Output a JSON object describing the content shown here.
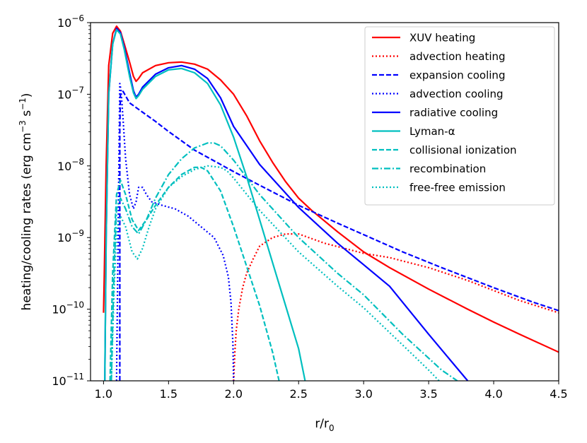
{
  "chart_data": {
    "type": "line",
    "title": "",
    "xlabel": "r/r",
    "xlabel_sub": "0",
    "ylabel_parts": {
      "pre": "heating/cooling rates (erg cm",
      "exp1": "−3",
      "mid": " s",
      "exp2": "−1",
      "post": ")"
    },
    "xlim": [
      0.9,
      4.5
    ],
    "ylim_log10": [
      -11,
      -6
    ],
    "yscale": "log",
    "grid": false,
    "legend_placement": "top-right",
    "x_ticks": [
      {
        "value": 1.0,
        "label": "1.0"
      },
      {
        "value": 1.5,
        "label": "1.5"
      },
      {
        "value": 2.0,
        "label": "2.0"
      },
      {
        "value": 2.5,
        "label": "2.5"
      },
      {
        "value": 3.0,
        "label": "3.0"
      },
      {
        "value": 3.5,
        "label": "3.5"
      },
      {
        "value": 4.0,
        "label": "4.0"
      },
      {
        "value": 4.5,
        "label": "4.5"
      }
    ],
    "y_ticks": [
      {
        "exp": -11,
        "base": "10",
        "sup": "−11"
      },
      {
        "exp": -10,
        "base": "10",
        "sup": "−10"
      },
      {
        "exp": -9,
        "base": "10",
        "sup": "−9"
      },
      {
        "exp": -8,
        "base": "10",
        "sup": "−8"
      },
      {
        "exp": -7,
        "base": "10",
        "sup": "−7"
      },
      {
        "exp": -6,
        "base": "10",
        "sup": "−6"
      }
    ],
    "series": [
      {
        "name": "XUV heating",
        "color": "#ff0000",
        "dash": "solid",
        "x": [
          1.0,
          1.005,
          1.02,
          1.04,
          1.07,
          1.1,
          1.13,
          1.16,
          1.2,
          1.23,
          1.25,
          1.27,
          1.3,
          1.4,
          1.5,
          1.6,
          1.7,
          1.8,
          1.9,
          2.0,
          2.1,
          2.2,
          2.3,
          2.4,
          2.5,
          2.6,
          2.8,
          3.0,
          3.2,
          3.5,
          3.8,
          4.0,
          4.2,
          4.5
        ],
        "y": [
          -10.05,
          -9.6,
          -8.0,
          -6.6,
          -6.15,
          -6.05,
          -6.12,
          -6.3,
          -6.55,
          -6.75,
          -6.82,
          -6.78,
          -6.7,
          -6.6,
          -6.56,
          -6.55,
          -6.58,
          -6.65,
          -6.8,
          -7.0,
          -7.3,
          -7.65,
          -7.95,
          -8.22,
          -8.45,
          -8.62,
          -8.92,
          -9.2,
          -9.42,
          -9.72,
          -10.0,
          -10.18,
          -10.35,
          -10.6
        ]
      },
      {
        "name": "advection heating",
        "color": "#ff0000",
        "dash": "dotted",
        "x": [
          2.0,
          2.01,
          2.02,
          2.04,
          2.07,
          2.1,
          2.15,
          2.2,
          2.3,
          2.4,
          2.5,
          2.7,
          3.0,
          3.2,
          3.5,
          3.8,
          4.0,
          4.2,
          4.5
        ],
        "y": [
          -11.0,
          -10.6,
          -10.3,
          -10.0,
          -9.7,
          -9.5,
          -9.3,
          -9.12,
          -9.0,
          -8.95,
          -8.95,
          -9.08,
          -9.22,
          -9.28,
          -9.42,
          -9.6,
          -9.74,
          -9.88,
          -10.05
        ]
      },
      {
        "name": "expansion cooling",
        "color": "#0000ff",
        "dash": "dashed",
        "x": [
          1.125,
          1.125,
          1.13,
          1.15,
          1.2,
          1.3,
          1.4,
          1.5,
          1.6,
          1.7,
          1.8,
          2.0,
          2.2,
          2.5,
          2.8,
          3.0,
          3.3,
          3.6,
          4.0,
          4.3,
          4.5
        ],
        "y": [
          -11.0,
          -7.5,
          -7.0,
          -6.96,
          -7.12,
          -7.25,
          -7.38,
          -7.52,
          -7.65,
          -7.78,
          -7.88,
          -8.08,
          -8.27,
          -8.55,
          -8.8,
          -8.96,
          -9.2,
          -9.42,
          -9.7,
          -9.9,
          -10.02
        ]
      },
      {
        "name": "advection cooling",
        "color": "#0000ff",
        "dash": "dotted",
        "x": [
          1.1,
          1.115,
          1.125,
          1.135,
          1.15,
          1.17,
          1.2,
          1.23,
          1.25,
          1.27,
          1.3,
          1.33,
          1.37,
          1.45,
          1.55,
          1.65,
          1.75,
          1.85,
          1.92,
          1.96,
          1.98,
          1.995,
          2.0
        ],
        "y": [
          -11.0,
          -8.5,
          -6.85,
          -6.95,
          -7.35,
          -7.9,
          -8.4,
          -8.6,
          -8.5,
          -8.3,
          -8.3,
          -8.4,
          -8.5,
          -8.55,
          -8.6,
          -8.7,
          -8.85,
          -9.0,
          -9.25,
          -9.55,
          -9.9,
          -10.5,
          -11.0
        ]
      },
      {
        "name": "radiative cooling",
        "color": "#0000ff",
        "dash": "solid",
        "x": [
          1.01,
          1.02,
          1.04,
          1.07,
          1.1,
          1.13,
          1.16,
          1.2,
          1.23,
          1.25,
          1.27,
          1.3,
          1.4,
          1.5,
          1.6,
          1.7,
          1.8,
          1.9,
          2.0,
          2.2,
          2.5,
          2.8,
          3.0,
          3.2,
          3.5,
          3.8
        ],
        "y": [
          -11.0,
          -9.0,
          -7.0,
          -6.3,
          -6.08,
          -6.14,
          -6.35,
          -6.7,
          -6.95,
          -7.04,
          -7.0,
          -6.9,
          -6.72,
          -6.63,
          -6.6,
          -6.65,
          -6.78,
          -7.05,
          -7.45,
          -7.98,
          -8.58,
          -9.08,
          -9.38,
          -9.68,
          -10.35,
          -11.0
        ]
      },
      {
        "name": "Lyman-α",
        "color": "#00bfbf",
        "dash": "solid",
        "x": [
          1.01,
          1.02,
          1.04,
          1.07,
          1.1,
          1.13,
          1.16,
          1.2,
          1.23,
          1.25,
          1.27,
          1.3,
          1.4,
          1.5,
          1.6,
          1.7,
          1.8,
          1.9,
          2.0,
          2.1,
          2.2,
          2.3,
          2.4,
          2.5,
          2.55
        ],
        "y": [
          -11.0,
          -9.0,
          -7.0,
          -6.3,
          -6.1,
          -6.16,
          -6.38,
          -6.75,
          -6.98,
          -7.06,
          -7.02,
          -6.93,
          -6.75,
          -6.66,
          -6.64,
          -6.7,
          -6.85,
          -7.15,
          -7.6,
          -8.15,
          -8.75,
          -9.35,
          -9.95,
          -10.55,
          -11.0
        ]
      },
      {
        "name": "collisional ionization",
        "color": "#00bfbf",
        "dash": "dashed",
        "x": [
          1.05,
          1.07,
          1.1,
          1.13,
          1.17,
          1.22,
          1.27,
          1.33,
          1.4,
          1.5,
          1.6,
          1.7,
          1.75,
          1.8,
          1.9,
          2.0,
          2.1,
          2.2,
          2.3,
          2.35
        ],
        "y": [
          -11.0,
          -9.5,
          -8.4,
          -8.2,
          -8.4,
          -8.75,
          -8.9,
          -8.75,
          -8.55,
          -8.3,
          -8.12,
          -8.02,
          -8.02,
          -8.07,
          -8.35,
          -8.85,
          -9.4,
          -9.95,
          -10.6,
          -11.0
        ]
      },
      {
        "name": "recombination",
        "color": "#00bfbf",
        "dash": "dashdot",
        "x": [
          1.06,
          1.08,
          1.1,
          1.13,
          1.17,
          1.22,
          1.27,
          1.33,
          1.4,
          1.5,
          1.6,
          1.7,
          1.8,
          1.85,
          1.9,
          2.0,
          2.2,
          2.5,
          2.8,
          3.0,
          3.3,
          3.6,
          3.72
        ],
        "y": [
          -11.0,
          -9.5,
          -8.6,
          -8.45,
          -8.6,
          -8.85,
          -8.95,
          -8.75,
          -8.45,
          -8.12,
          -7.9,
          -7.75,
          -7.68,
          -7.68,
          -7.72,
          -7.92,
          -8.4,
          -9.0,
          -9.5,
          -9.8,
          -10.35,
          -10.85,
          -11.0
        ]
      },
      {
        "name": "free-free emission",
        "color": "#00bfbf",
        "dash": "dotted",
        "x": [
          1.06,
          1.08,
          1.1,
          1.13,
          1.17,
          1.22,
          1.26,
          1.3,
          1.35,
          1.4,
          1.5,
          1.6,
          1.7,
          1.8,
          1.9,
          1.95,
          2.0,
          2.2,
          2.5,
          2.8,
          3.0,
          3.3,
          3.5,
          3.58
        ],
        "y": [
          -11.0,
          -9.8,
          -8.9,
          -8.7,
          -8.85,
          -9.2,
          -9.3,
          -9.15,
          -8.85,
          -8.6,
          -8.3,
          -8.15,
          -8.05,
          -8.0,
          -8.02,
          -8.07,
          -8.17,
          -8.62,
          -9.2,
          -9.68,
          -9.98,
          -10.5,
          -10.85,
          -11.0
        ]
      }
    ]
  }
}
